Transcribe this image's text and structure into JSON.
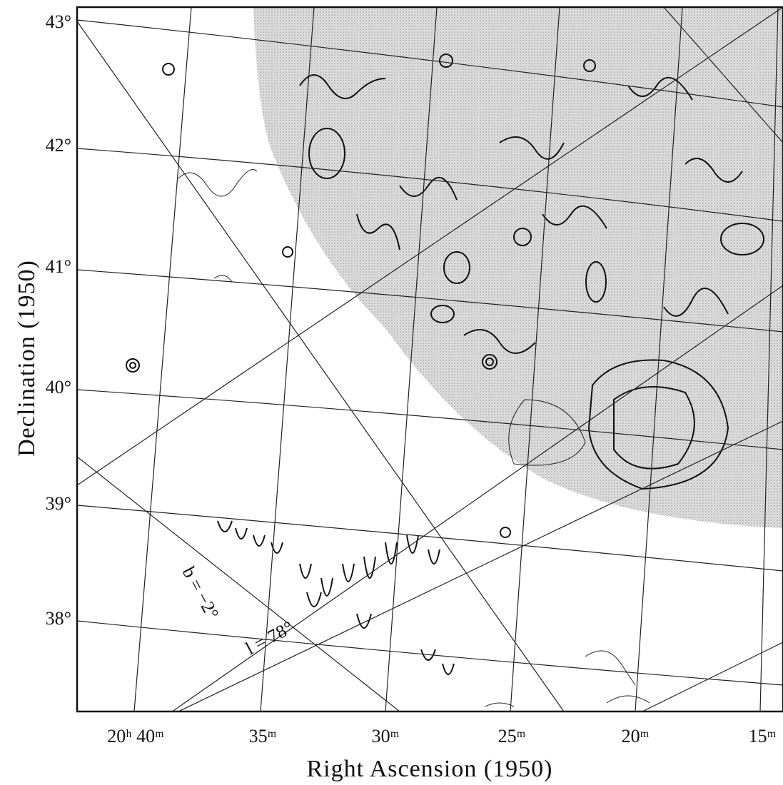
{
  "figure": {
    "x_axis": {
      "label": "Right Ascension (1950)",
      "ticks": [
        "20ʰ 40ᵐ",
        "35ᵐ",
        "30ᵐ",
        "25ᵐ",
        "20ᵐ",
        "15ᵐ"
      ]
    },
    "y_axis": {
      "label": "Declination (1950)",
      "ticks": [
        "43°",
        "42°",
        "41°",
        "40°",
        "39°",
        "38°"
      ]
    },
    "annotations": [
      "b = −2°",
      "l = 78°"
    ]
  }
}
